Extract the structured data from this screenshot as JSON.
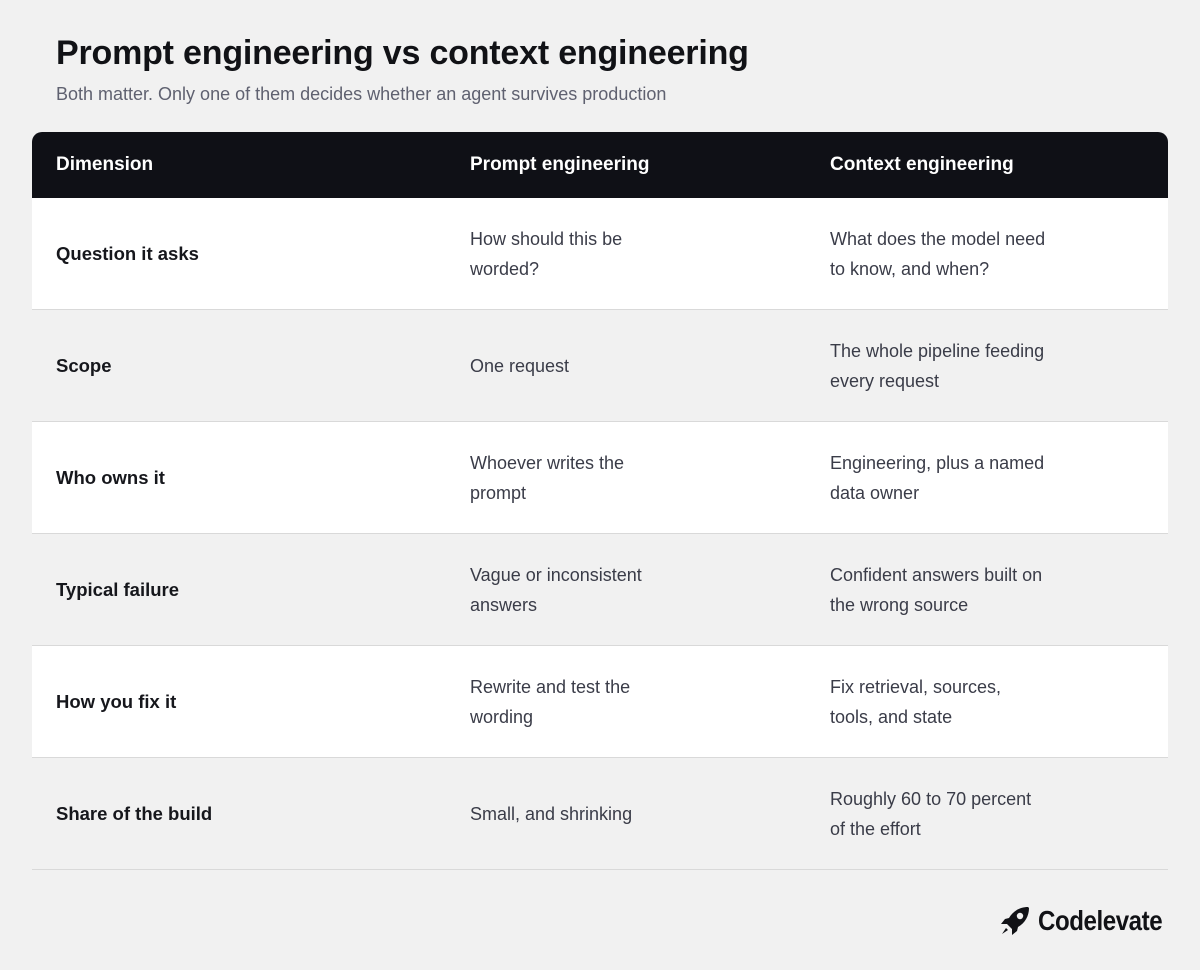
{
  "header": {
    "title": "Prompt engineering vs context engineering",
    "subtitle": "Both matter. Only one of them decides whether an agent survives production"
  },
  "table": {
    "columns": [
      "Dimension",
      "Prompt engineering",
      "Context engineering"
    ],
    "rows": [
      {
        "dimension": "Question it asks",
        "prompt": "How should this be\nworded?",
        "context": "What does the model need\nto know, and when?"
      },
      {
        "dimension": "Scope",
        "prompt": "One request",
        "context": "The whole pipeline feeding\nevery request"
      },
      {
        "dimension": "Who owns it",
        "prompt": "Whoever writes the\nprompt",
        "context": "Engineering, plus a named\ndata owner"
      },
      {
        "dimension": "Typical failure",
        "prompt": "Vague or inconsistent\nanswers",
        "context": "Confident answers built on\nthe wrong source"
      },
      {
        "dimension": "How you fix it",
        "prompt": "Rewrite and test the\nwording",
        "context": "Fix retrieval, sources,\ntools, and state"
      },
      {
        "dimension": "Share of the build",
        "prompt": "Small, and shrinking",
        "context": "Roughly 60 to 70 percent\nof the effort"
      }
    ]
  },
  "brand": {
    "name": "Codelevate",
    "icon": "rocket-icon"
  },
  "colors": {
    "header_bg": "#0f1016",
    "page_bg": "#f1f1f1",
    "row_alt_bg": "#ffffff"
  }
}
